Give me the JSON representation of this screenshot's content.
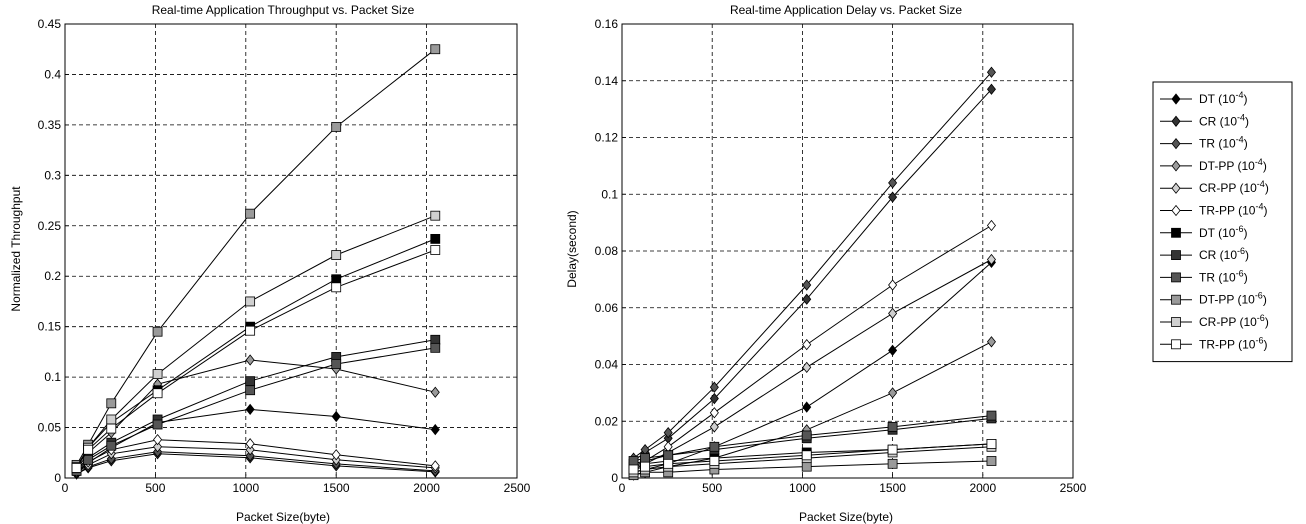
{
  "chart_data": [
    {
      "type": "line",
      "title": "Real-time Application Throughput vs. Packet Size",
      "xlabel": "Packet Size(byte)",
      "ylabel": "Normalized Throughput",
      "xlim": [
        0,
        2500
      ],
      "ylim": [
        0,
        0.45
      ],
      "xticks": [
        "0",
        "500",
        "1000",
        "1500",
        "2000",
        "2500"
      ],
      "yticks": [
        "0",
        "0.05",
        "0.1",
        "0.15",
        "0.2",
        "0.25",
        "0.3",
        "0.35",
        "0.4",
        "0.45"
      ],
      "grid": true,
      "x": [
        64,
        128,
        256,
        512,
        1024,
        1500,
        2048
      ],
      "series": [
        {
          "name": "DT (10^-4)",
          "values": [
            0.005,
            0.015,
            0.03,
            0.055,
            0.068,
            0.061,
            0.048
          ]
        },
        {
          "name": "CR (10^-4)",
          "values": [
            0.004,
            0.01,
            0.017,
            0.024,
            0.02,
            0.012,
            0.006
          ]
        },
        {
          "name": "TR (10^-4)",
          "values": [
            0.004,
            0.011,
            0.019,
            0.026,
            0.022,
            0.014,
            0.007
          ]
        },
        {
          "name": "DT-PP (10^-4)",
          "values": [
            0.008,
            0.025,
            0.045,
            0.093,
            0.117,
            0.108,
            0.085
          ]
        },
        {
          "name": "CR-PP (10^-4)",
          "values": [
            0.005,
            0.013,
            0.024,
            0.031,
            0.028,
            0.018,
            0.01
          ]
        },
        {
          "name": "TR-PP (10^-4)",
          "values": [
            0.006,
            0.016,
            0.028,
            0.038,
            0.034,
            0.023,
            0.012
          ]
        },
        {
          "name": "DT (10^-6)",
          "values": [
            0.01,
            0.03,
            0.055,
            0.087,
            0.15,
            0.197,
            0.237
          ]
        },
        {
          "name": "CR (10^-6)",
          "values": [
            0.008,
            0.02,
            0.035,
            0.058,
            0.096,
            0.12,
            0.137
          ]
        },
        {
          "name": "TR (10^-6)",
          "values": [
            0.007,
            0.018,
            0.032,
            0.053,
            0.087,
            0.113,
            0.129
          ]
        },
        {
          "name": "DT-PP (10^-6)",
          "values": [
            0.013,
            0.033,
            0.074,
            0.145,
            0.262,
            0.348,
            0.425
          ]
        },
        {
          "name": "CR-PP (10^-6)",
          "values": [
            0.011,
            0.03,
            0.058,
            0.103,
            0.175,
            0.221,
            0.26
          ]
        },
        {
          "name": "TR-PP (10^-6)",
          "values": [
            0.01,
            0.028,
            0.049,
            0.084,
            0.146,
            0.189,
            0.226
          ]
        }
      ]
    },
    {
      "type": "line",
      "title": "Real-time Application Delay vs. Packet Size",
      "xlabel": "Packet Size(byte)",
      "ylabel": "Delay(second)",
      "xlim": [
        0,
        2500
      ],
      "ylim": [
        0,
        0.16
      ],
      "xticks": [
        "0",
        "500",
        "1000",
        "1500",
        "2000",
        "2500"
      ],
      "yticks": [
        "0",
        "0.02",
        "0.04",
        "0.06",
        "0.08",
        "0.1",
        "0.12",
        "0.14",
        "0.16"
      ],
      "grid": true,
      "x": [
        64,
        128,
        256,
        512,
        1024,
        1500,
        2048
      ],
      "series": [
        {
          "name": "DT (10^-4)",
          "values": [
            0.002,
            0.003,
            0.005,
            0.011,
            0.025,
            0.045,
            0.076
          ]
        },
        {
          "name": "CR (10^-4)",
          "values": [
            0.006,
            0.009,
            0.014,
            0.028,
            0.063,
            0.099,
            0.137
          ]
        },
        {
          "name": "TR (10^-4)",
          "values": [
            0.007,
            0.01,
            0.016,
            0.032,
            0.068,
            0.104,
            0.143
          ]
        },
        {
          "name": "DT-PP (10^-4)",
          "values": [
            0.001,
            0.002,
            0.004,
            0.007,
            0.017,
            0.03,
            0.048
          ]
        },
        {
          "name": "CR-PP (10^-4)",
          "values": [
            0.003,
            0.005,
            0.009,
            0.018,
            0.039,
            0.058,
            0.077
          ]
        },
        {
          "name": "TR-PP (10^-4)",
          "values": [
            0.004,
            0.006,
            0.011,
            0.023,
            0.047,
            0.068,
            0.089
          ]
        },
        {
          "name": "DT (10^-6)",
          "values": [
            0.004,
            0.005,
            0.006,
            0.007,
            0.009,
            0.01,
            0.012
          ]
        },
        {
          "name": "CR (10^-6)",
          "values": [
            0.005,
            0.006,
            0.008,
            0.01,
            0.014,
            0.017,
            0.021
          ]
        },
        {
          "name": "TR (10^-6)",
          "values": [
            0.006,
            0.007,
            0.008,
            0.011,
            0.015,
            0.018,
            0.022
          ]
        },
        {
          "name": "DT-PP (10^-6)",
          "values": [
            0.001,
            0.002,
            0.002,
            0.003,
            0.004,
            0.005,
            0.006
          ]
        },
        {
          "name": "CR-PP (10^-6)",
          "values": [
            0.002,
            0.003,
            0.004,
            0.005,
            0.007,
            0.009,
            0.011
          ]
        },
        {
          "name": "TR-PP (10^-6)",
          "values": [
            0.003,
            0.004,
            0.005,
            0.006,
            0.008,
            0.01,
            0.012
          ]
        }
      ]
    }
  ],
  "legend": {
    "placement": "right",
    "entries": [
      {
        "base": "DT",
        "exp": "-4",
        "marker": "diamond",
        "color": "#000000"
      },
      {
        "base": "CR",
        "exp": "-4",
        "marker": "diamond",
        "color": "#333333"
      },
      {
        "base": "TR",
        "exp": "-4",
        "marker": "diamond",
        "color": "#555555"
      },
      {
        "base": "DT-PP",
        "exp": "-4",
        "marker": "diamond",
        "color": "#9a9a9a"
      },
      {
        "base": "CR-PP",
        "exp": "-4",
        "marker": "diamond",
        "color": "#d0d0d0"
      },
      {
        "base": "TR-PP",
        "exp": "-4",
        "marker": "diamond",
        "color": "#ffffff"
      },
      {
        "base": "DT",
        "exp": "-6",
        "marker": "square",
        "color": "#000000"
      },
      {
        "base": "CR",
        "exp": "-6",
        "marker": "square",
        "color": "#333333"
      },
      {
        "base": "TR",
        "exp": "-6",
        "marker": "square",
        "color": "#555555"
      },
      {
        "base": "DT-PP",
        "exp": "-6",
        "marker": "square",
        "color": "#9a9a9a"
      },
      {
        "base": "CR-PP",
        "exp": "-6",
        "marker": "square",
        "color": "#d0d0d0"
      },
      {
        "base": "TR-PP",
        "exp": "-6",
        "marker": "square",
        "color": "#ffffff"
      }
    ]
  }
}
